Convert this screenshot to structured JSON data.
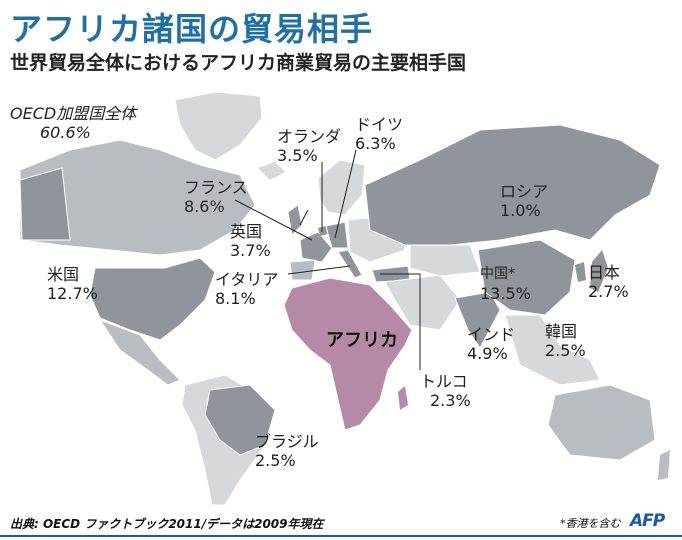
{
  "title": "アフリカ諸国の貿易相手",
  "subtitle": "世界貿易全体におけるアフリカ商業貿易の主要相手国",
  "africa_label": "アフリカ",
  "partners": [
    {
      "name": "OECD加盟国全体",
      "value": "60.6%"
    },
    {
      "name": "オランダ",
      "value": "3.5%"
    },
    {
      "name": "ドイツ",
      "value": "6.3%"
    },
    {
      "name": "フランス",
      "value": "8.6%"
    },
    {
      "name": "ロシア",
      "value": "1.0%"
    },
    {
      "name": "英国",
      "value": "3.7%"
    },
    {
      "name": "米国",
      "value": "12.7%"
    },
    {
      "name": "イタリア",
      "value": "8.1%"
    },
    {
      "name": "中国*",
      "value": "13.5%"
    },
    {
      "name": "日本",
      "value": "2.7%"
    },
    {
      "name": "インド",
      "value": "4.9%"
    },
    {
      "name": "韓国",
      "value": "2.5%"
    },
    {
      "name": "トルコ",
      "value": "2.3%"
    },
    {
      "name": "ブラジル",
      "value": "2.5%"
    }
  ],
  "source": "出典: OECD ファクトブック2011/データは2009年現在",
  "note": "*香港を含む",
  "logo": "AFP",
  "colors": {
    "title": "#1f6fa8",
    "africa": "#b58aa6",
    "partner": "#8f959b",
    "oecd": "#b8bdc2",
    "other": "#d6d9dc",
    "logo": "#1a55b8"
  }
}
